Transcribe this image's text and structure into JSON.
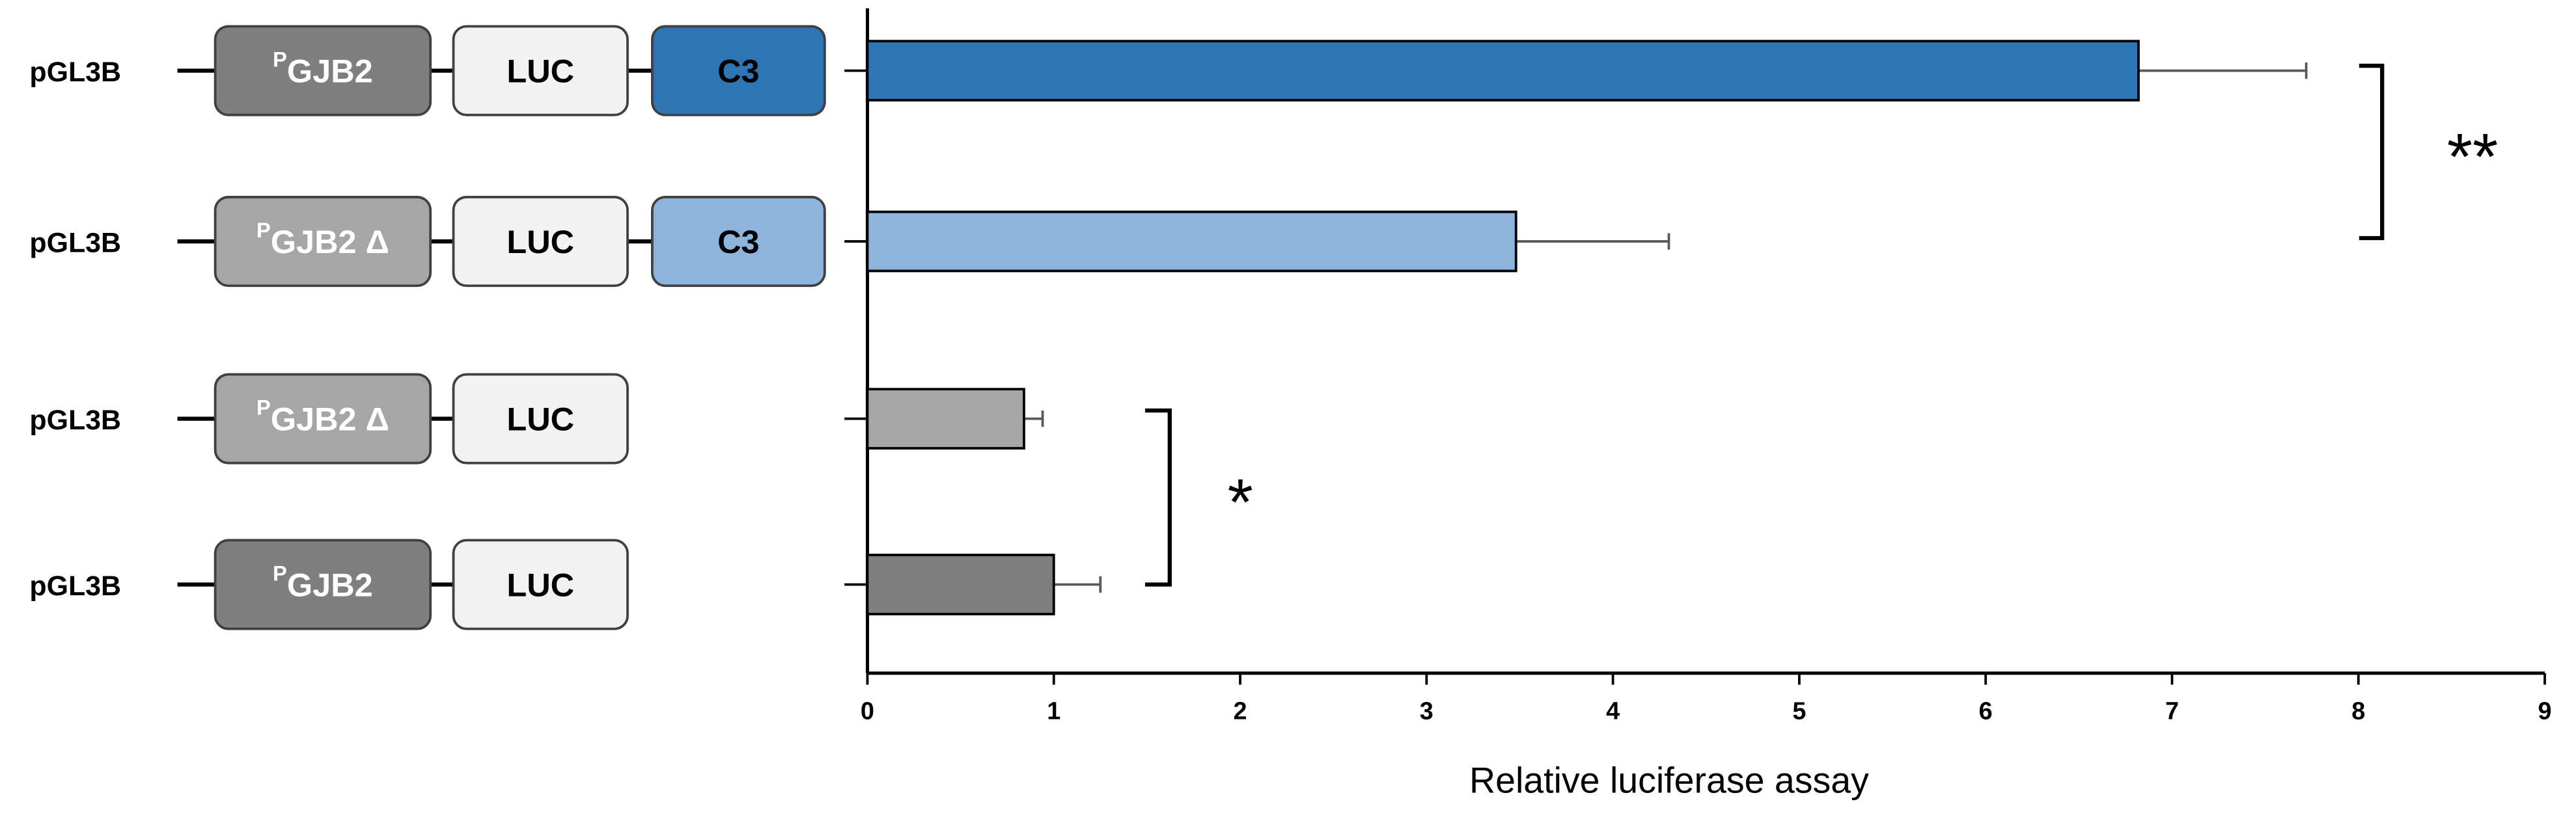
{
  "chart_data": {
    "type": "bar",
    "orientation": "horizontal",
    "x_label": "Relative luciferase assay",
    "categories": [
      "pGL3B",
      "pGL3B",
      "pGL3B",
      "pGL3B"
    ],
    "constructs": [
      [
        {
          "sup": "P",
          "text": "GJB2",
          "color": "#7f7f7f",
          "text_color": "#ffffff"
        },
        {
          "text": "LUC",
          "color": "#f2f2f2",
          "text_color": "#000000"
        },
        {
          "text": "C3",
          "color": "#2e75b6",
          "text_color": "#000000"
        }
      ],
      [
        {
          "sup": "P",
          "text": "GJB2 Δ",
          "color": "#a6a6a6",
          "text_color": "#ffffff"
        },
        {
          "text": "LUC",
          "color": "#f2f2f2",
          "text_color": "#000000"
        },
        {
          "text": "C3",
          "color": "#8db4dc",
          "text_color": "#000000"
        }
      ],
      [
        {
          "sup": "P",
          "text": "GJB2 Δ",
          "color": "#a6a6a6",
          "text_color": "#ffffff"
        },
        {
          "text": "LUC",
          "color": "#f2f2f2",
          "text_color": "#000000"
        }
      ],
      [
        {
          "sup": "P",
          "text": "GJB2",
          "color": "#7f7f7f",
          "text_color": "#ffffff"
        },
        {
          "text": "LUC",
          "color": "#f2f2f2",
          "text_color": "#000000"
        }
      ]
    ],
    "values": [
      6.82,
      3.48,
      0.84,
      1.0
    ],
    "errors": [
      0.9,
      0.82,
      0.1,
      0.25
    ],
    "colors": [
      "#2e75b6",
      "#8db4dc",
      "#a6a6a6",
      "#7f7f7f"
    ],
    "annotations": [
      "**",
      "*"
    ],
    "xlim": [
      0,
      9
    ],
    "xticks": [
      0,
      1,
      2,
      3,
      4,
      5,
      6,
      7,
      8,
      9
    ]
  }
}
